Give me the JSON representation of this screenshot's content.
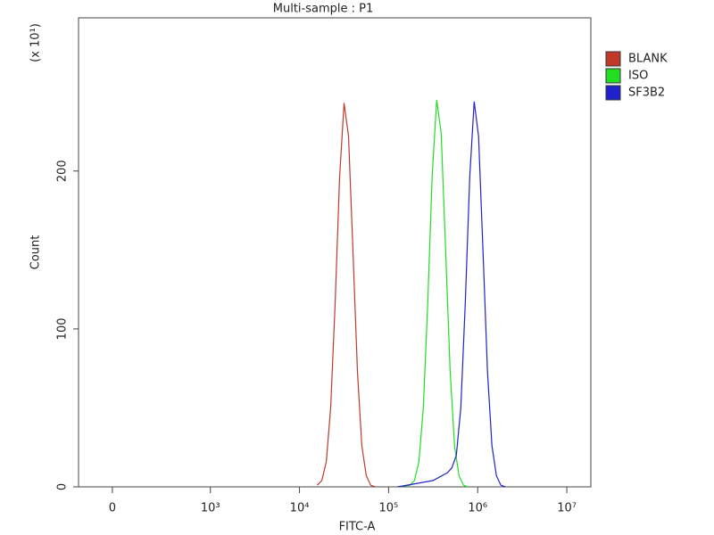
{
  "chart_data": {
    "type": "line",
    "title": "Multi-sample : P1",
    "x_label": "FITC-A",
    "y_label": "Count",
    "y_multiplier": "(x 10¹)",
    "xscale": "biex",
    "xlim": [
      -345,
      18600000
    ],
    "ylim": [
      0,
      297
    ],
    "xticks": [
      0,
      {
        "value": 1000,
        "label": "10³"
      },
      {
        "value": 10000,
        "label": "10⁴"
      },
      {
        "value": 100000,
        "label": "10⁵"
      },
      {
        "value": 1000000,
        "label": "10⁶"
      },
      {
        "value": 10000000,
        "label": "10⁷"
      }
    ],
    "yticks": [
      0,
      100,
      200
    ],
    "legend": "right",
    "series": [
      {
        "name": "BLANK",
        "color": "#c0392b",
        "x": [
          15800,
          17800,
          20000,
          22400,
          25100,
          28200,
          31600,
          35500,
          39800,
          44700,
          50100,
          56200,
          63100,
          70800
        ],
        "values": [
          1,
          4,
          16,
          50,
          116,
          196,
          243,
          222,
          149,
          73,
          26,
          7,
          1,
          0
        ]
      },
      {
        "name": "ISO",
        "color": "#22dd22",
        "x": [
          125900,
          173800,
          195000,
          218800,
          245500,
          275400,
          309000,
          346700,
          389000,
          436500,
          489800,
          549500,
          616600,
          691800,
          776200
        ],
        "values": [
          0,
          1,
          4,
          16,
          50,
          117,
          198,
          245,
          224,
          150,
          74,
          26,
          7,
          1,
          0
        ]
      },
      {
        "name": "SF3B2",
        "color": "#2222cc",
        "x": [
          125900,
          199500,
          316200,
          457100,
          512900,
          575400,
          645700,
          724400,
          812800,
          912000,
          1023000,
          1148000,
          1288000,
          1445000,
          1622000,
          1820000,
          2042000
        ],
        "values": [
          0,
          2,
          4,
          9,
          12,
          20,
          50,
          116,
          196,
          244,
          222,
          149,
          73,
          26,
          7,
          1,
          0
        ]
      }
    ]
  }
}
